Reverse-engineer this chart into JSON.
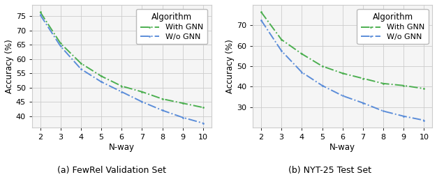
{
  "x": [
    2,
    3,
    4,
    5,
    6,
    7,
    8,
    9,
    10
  ],
  "fewrel_with_gnn": [
    76.5,
    65.5,
    58.5,
    54.0,
    50.5,
    48.5,
    46.0,
    44.5,
    43.0
  ],
  "fewrel_wo_gnn": [
    75.5,
    64.5,
    56.5,
    52.0,
    48.5,
    45.0,
    42.0,
    39.5,
    37.5
  ],
  "nyt_with_gnn": [
    76.5,
    63.0,
    56.0,
    50.0,
    46.5,
    44.0,
    41.5,
    40.5,
    39.0
  ],
  "nyt_wo_gnn": [
    72.5,
    57.5,
    47.0,
    40.5,
    35.5,
    32.0,
    28.0,
    25.5,
    23.5
  ],
  "color_with_gnn": "#4caf50",
  "color_wo_gnn": "#5b8dd9",
  "marker_with_gnn": ".",
  "marker_wo_gnn": ".",
  "xlabel": "N-way",
  "ylabel": "Accuracy (%)",
  "legend_title": "Algorithm",
  "label_with_gnn": "With GNN",
  "label_wo_gnn": "W/o GNN",
  "caption_a": "(a) FewRel Validation Set",
  "caption_b": "(b) NYT-25 Test Set",
  "ylim_a": [
    36,
    79
  ],
  "ylim_b": [
    20,
    80
  ],
  "yticks_a": [
    40,
    45,
    50,
    55,
    60,
    65,
    70,
    75
  ],
  "yticks_b": [
    30,
    40,
    50,
    60,
    70
  ],
  "bg_color": "#f5f5f5",
  "grid_color": "#cccccc"
}
